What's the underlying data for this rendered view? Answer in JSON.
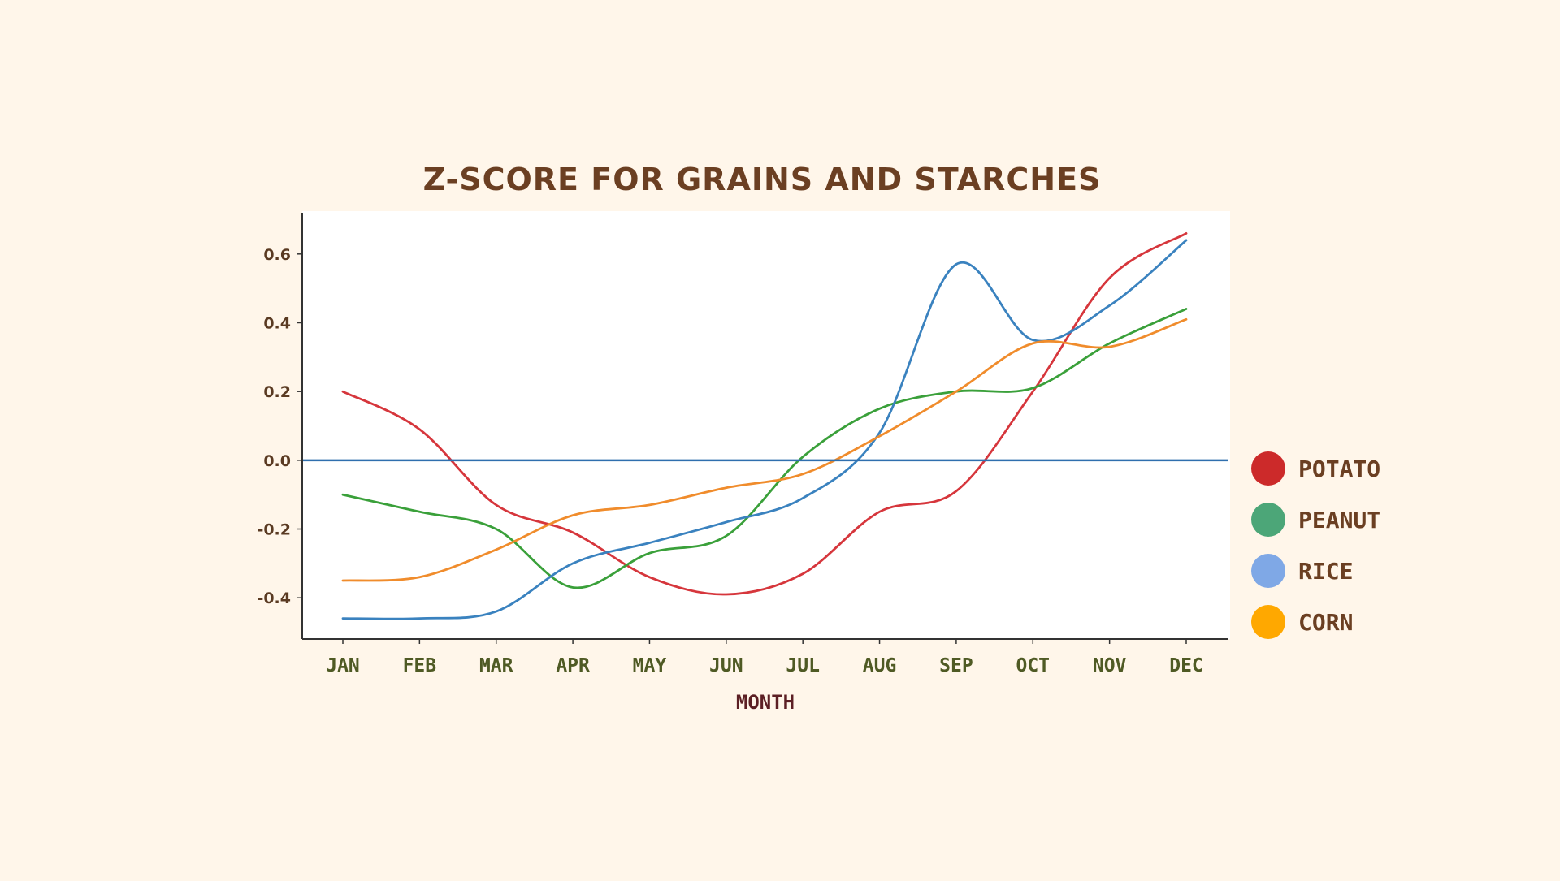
{
  "chart_data": {
    "type": "line",
    "title": "Z-SCORE FOR GRAINS AND STARCHES",
    "xlabel": "MONTH",
    "ylabel": "",
    "categories": [
      "JAN",
      "FEB",
      "MAR",
      "APR",
      "MAY",
      "JUN",
      "JUL",
      "AUG",
      "SEP",
      "OCT",
      "NOV",
      "DEC"
    ],
    "ylim": [
      -0.52,
      0.72
    ],
    "yticks": [
      -0.4,
      -0.2,
      0.0,
      0.2,
      0.4,
      0.6
    ],
    "ytick_labels": [
      "-0.4",
      "-0.2",
      "0.0",
      "0.2",
      "0.4",
      "0.6"
    ],
    "reference_line": 0.0,
    "grid": false,
    "legend_position": "right",
    "series": [
      {
        "name": "POTATO",
        "color": "#d6363c",
        "legend_color": "#cc2a2a",
        "values": [
          0.2,
          0.09,
          -0.13,
          -0.21,
          -0.34,
          -0.39,
          -0.33,
          -0.15,
          -0.09,
          0.2,
          0.53,
          0.66
        ]
      },
      {
        "name": "PEANUT",
        "color": "#3aa03a",
        "legend_color": "#4ca678",
        "values": [
          -0.1,
          -0.15,
          -0.2,
          -0.37,
          -0.27,
          -0.22,
          0.01,
          0.15,
          0.2,
          0.21,
          0.34,
          0.44
        ]
      },
      {
        "name": "RICE",
        "color": "#3a82bf",
        "legend_color": "#7fa8e6",
        "values": [
          -0.46,
          -0.46,
          -0.44,
          -0.3,
          -0.24,
          -0.18,
          -0.11,
          0.08,
          0.57,
          0.35,
          0.45,
          0.64
        ]
      },
      {
        "name": "CORN",
        "color": "#f08c2c",
        "legend_color": "#ffa800",
        "values": [
          -0.35,
          -0.34,
          -0.26,
          -0.16,
          -0.13,
          -0.08,
          -0.04,
          0.07,
          0.2,
          0.34,
          0.33,
          0.41
        ]
      }
    ]
  }
}
